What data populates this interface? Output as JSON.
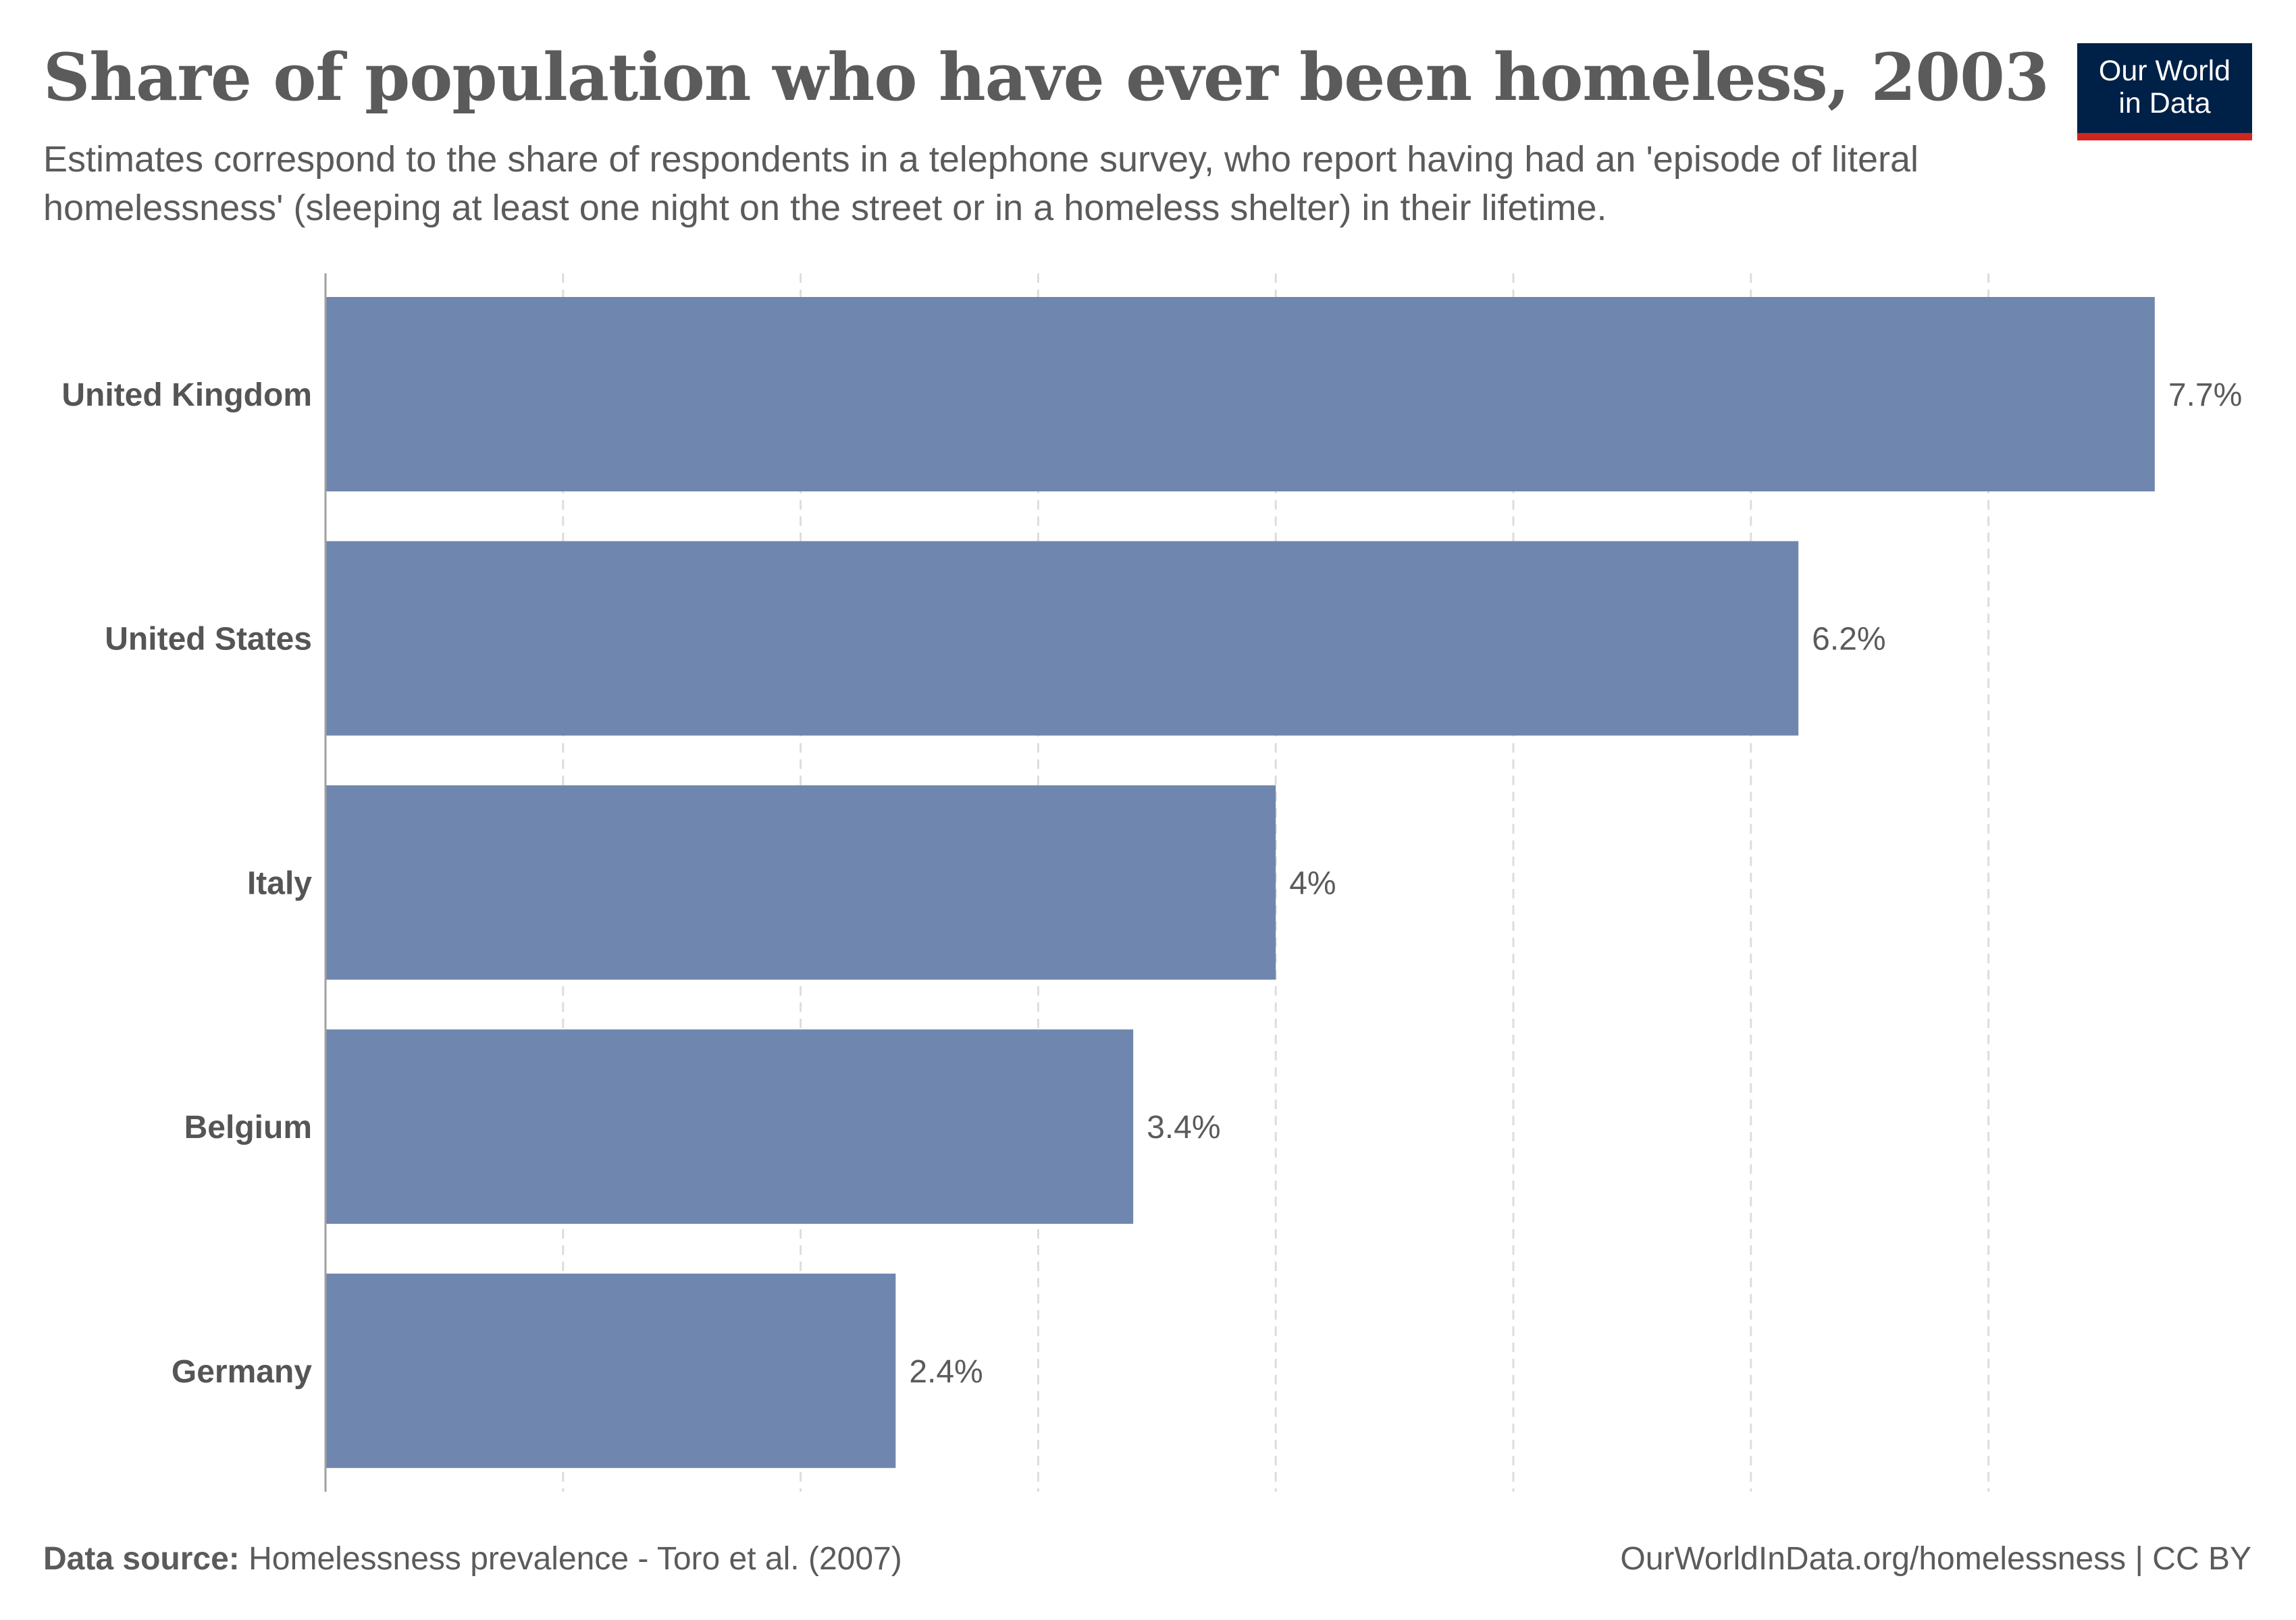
{
  "header": {
    "title": "Share of population who have ever been homeless, 2003",
    "subtitle": "Estimates correspond to the share of respondents in a telephone survey, who report having had an 'episode of literal homelessness' (sleeping at least one night on the street or in a homeless shelter) in their lifetime."
  },
  "logo": {
    "line1": "Our World",
    "line2": "in Data",
    "bg_color": "#002147",
    "accent_color": "#ce261e"
  },
  "footer": {
    "source_label": "Data source:",
    "source_text": "Homelessness prevalence - Toro et al. (2007)",
    "credit": "OurWorldInData.org/homelessness | CC BY"
  },
  "chart_data": {
    "type": "bar",
    "orientation": "horizontal",
    "title": "Share of population who have ever been homeless, 2003",
    "xlabel": "",
    "ylabel": "",
    "categories": [
      "United Kingdom",
      "United States",
      "Italy",
      "Belgium",
      "Germany"
    ],
    "values": [
      7.7,
      6.2,
      4,
      3.4,
      2.4
    ],
    "value_labels": [
      "7.7%",
      "6.2%",
      "4%",
      "3.4%",
      "2.4%"
    ],
    "unit": "%",
    "xlim": [
      0,
      7.7
    ],
    "gridlines": [
      1,
      2,
      3,
      4,
      5,
      6,
      7
    ],
    "grid": true,
    "grid_style": "dashed-vertical",
    "bar_color": "#6f87ae",
    "legend": "none"
  }
}
